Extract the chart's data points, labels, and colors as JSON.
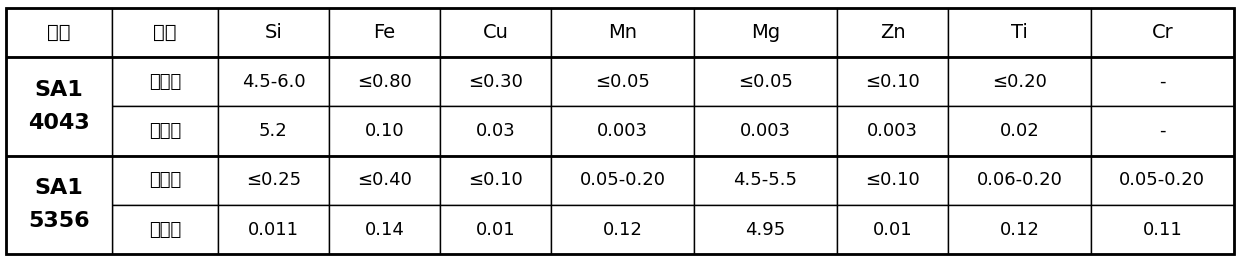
{
  "headers": [
    "型号",
    "类型",
    "Si",
    "Fe",
    "Cu",
    "Mn",
    "Mg",
    "Zn",
    "Ti",
    "Cr"
  ],
  "rows": [
    [
      "SA1\n4043",
      "标准值",
      "4.5-6.0",
      "≤0.80",
      "≤0.30",
      "≤0.05",
      "≤0.05",
      "≤0.10",
      "≤0.20",
      "-"
    ],
    [
      "",
      "实测值",
      "5.2",
      "0.10",
      "0.03",
      "0.003",
      "0.003",
      "0.003",
      "0.02",
      "-"
    ],
    [
      "SA1\n5356",
      "标准值",
      "≤0.25",
      "≤0.40",
      "≤0.10",
      "0.05-0.20",
      "4.5-5.5",
      "≤0.10",
      "0.06-0.20",
      "0.05-0.20"
    ],
    [
      "",
      "实测值",
      "0.011",
      "0.14",
      "0.01",
      "0.12",
      "4.95",
      "0.01",
      "0.12",
      "0.11"
    ]
  ],
  "col_widths_rel": [
    1.0,
    1.0,
    1.05,
    1.05,
    1.05,
    1.35,
    1.35,
    1.05,
    1.35,
    1.35
  ],
  "row_heights_rel": [
    1.0,
    1.0,
    1.0,
    1.0,
    1.0
  ],
  "header_fontsize": 14,
  "cell_fontsize": 13,
  "merged_fontsize": 16,
  "background_color": "#ffffff",
  "line_color": "#000000",
  "text_color": "#000000",
  "outer_lw": 2.0,
  "inner_lw": 1.0,
  "group_sep_lw": 2.0,
  "header_sep_lw": 2.0
}
